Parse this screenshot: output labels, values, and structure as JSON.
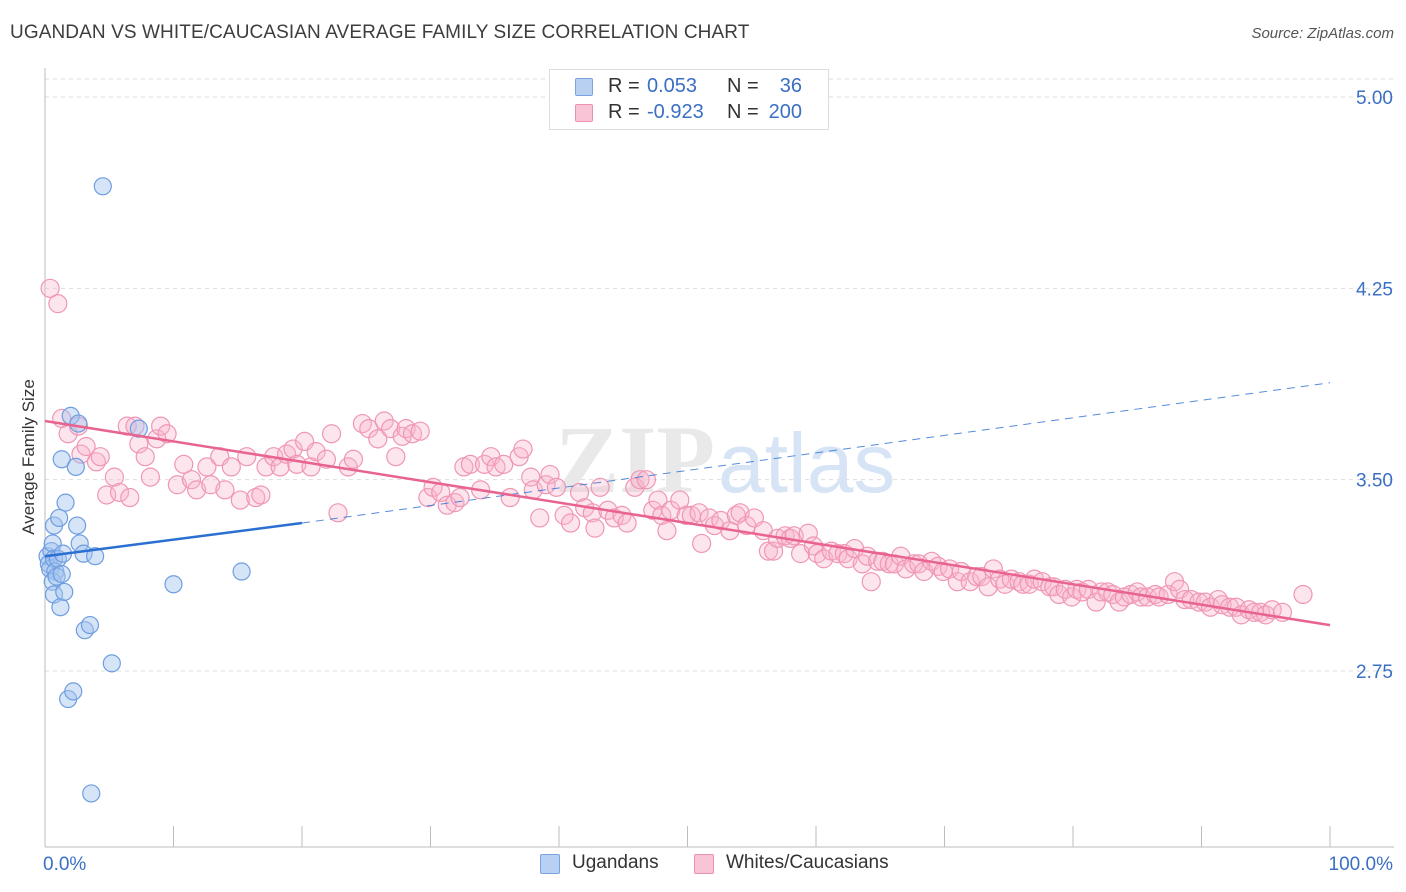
{
  "header": {
    "title": "UGANDAN VS WHITE/CAUCASIAN AVERAGE FAMILY SIZE CORRELATION CHART",
    "source": "Source: ZipAtlas.com"
  },
  "watermark": {
    "zip": "ZIP",
    "atlas": "atlas"
  },
  "legend": {
    "rows": [
      {
        "r_label": "R =",
        "r_value": "0.053",
        "n_label": "N =",
        "n_value": "36",
        "swatch_fill": "#b8d0f2",
        "swatch_border": "#7aa3e0"
      },
      {
        "r_label": "R =",
        "r_value": "-0.923",
        "n_label": "N =",
        "n_value": "200",
        "swatch_fill": "#f9c4d6",
        "swatch_border": "#ec8fb0"
      }
    ]
  },
  "bottom_legend": {
    "items": [
      {
        "label": "Ugandans",
        "swatch_fill": "#b8d0f2",
        "swatch_border": "#7aa3e0"
      },
      {
        "label": "Whites/Caucasians",
        "swatch_fill": "#f9c4d6",
        "swatch_border": "#ec8fb0"
      }
    ]
  },
  "colors": {
    "blue_fill": "rgba(164,196,240,0.45)",
    "blue_stroke": "#6e9ee0",
    "blue_line": "#2a6fd1",
    "pink_fill": "rgba(248,180,204,0.35)",
    "pink_stroke": "#ef96b6",
    "pink_line": "#e8648f",
    "axis_label": "#3a6fc4",
    "grid": "#dddddd"
  },
  "chart_data": {
    "type": "scatter",
    "title": "UGANDAN VS WHITE/CAUCASIAN AVERAGE FAMILY SIZE CORRELATION CHART",
    "xlabel": "",
    "ylabel": "Average Family Size",
    "xlim": [
      0,
      100
    ],
    "ylim": [
      2.25,
      5.1
    ],
    "x_tick_labels": [
      "0.0%",
      "100.0%"
    ],
    "y_ticks": [
      2.75,
      3.5,
      4.25,
      5.0
    ],
    "y_tick_labels": [
      "2.75",
      "3.50",
      "4.25",
      "5.00"
    ],
    "grid": "horizontal dashed",
    "series": [
      {
        "name": "Ugandans",
        "R": 0.053,
        "N": 36,
        "trend": {
          "solid": [
            [
              0,
              3.2
            ],
            [
              20,
              3.33
            ]
          ],
          "dashed": [
            [
              20,
              3.33
            ],
            [
              100,
              3.88
            ]
          ]
        },
        "points": [
          [
            0.2,
            3.2
          ],
          [
            0.3,
            3.17
          ],
          [
            0.4,
            3.15
          ],
          [
            0.5,
            3.22
          ],
          [
            0.6,
            3.25
          ],
          [
            0.7,
            3.19
          ],
          [
            0.8,
            3.14
          ],
          [
            0.6,
            3.1
          ],
          [
            0.7,
            3.05
          ],
          [
            0.7,
            3.32
          ],
          [
            0.9,
            3.12
          ],
          [
            1.0,
            3.19
          ],
          [
            1.1,
            3.35
          ],
          [
            1.2,
            3.0
          ],
          [
            1.3,
            3.13
          ],
          [
            1.3,
            3.58
          ],
          [
            1.4,
            3.21
          ],
          [
            1.5,
            3.06
          ],
          [
            1.6,
            3.41
          ],
          [
            1.8,
            2.64
          ],
          [
            2.0,
            3.75
          ],
          [
            2.2,
            2.67
          ],
          [
            2.4,
            3.55
          ],
          [
            2.5,
            3.32
          ],
          [
            2.6,
            3.72
          ],
          [
            2.7,
            3.25
          ],
          [
            3.0,
            3.21
          ],
          [
            3.1,
            2.91
          ],
          [
            3.5,
            2.93
          ],
          [
            3.6,
            2.27
          ],
          [
            3.9,
            3.2
          ],
          [
            4.5,
            4.65
          ],
          [
            5.2,
            2.78
          ],
          [
            7.3,
            3.7
          ],
          [
            10.0,
            3.09
          ],
          [
            15.3,
            3.14
          ]
        ]
      },
      {
        "name": "Whites/Caucasians",
        "R": -0.923,
        "N": 200,
        "trend": {
          "solid": [
            [
              0,
              3.73
            ],
            [
              100,
              2.93
            ]
          ]
        },
        "points": [
          [
            0.4,
            4.25
          ],
          [
            1.0,
            4.19
          ],
          [
            1.3,
            3.74
          ],
          [
            1.8,
            3.68
          ],
          [
            2.6,
            3.71
          ],
          [
            2.8,
            3.6
          ],
          [
            3.2,
            3.63
          ],
          [
            4.0,
            3.57
          ],
          [
            4.3,
            3.59
          ],
          [
            4.8,
            3.44
          ],
          [
            5.4,
            3.51
          ],
          [
            5.8,
            3.45
          ],
          [
            6.4,
            3.71
          ],
          [
            6.6,
            3.43
          ],
          [
            7.0,
            3.71
          ],
          [
            7.3,
            3.64
          ],
          [
            7.8,
            3.59
          ],
          [
            8.2,
            3.51
          ],
          [
            8.7,
            3.66
          ],
          [
            9.0,
            3.71
          ],
          [
            9.5,
            3.68
          ],
          [
            10.3,
            3.48
          ],
          [
            10.8,
            3.56
          ],
          [
            11.4,
            3.5
          ],
          [
            11.8,
            3.46
          ],
          [
            12.6,
            3.55
          ],
          [
            12.9,
            3.48
          ],
          [
            13.6,
            3.59
          ],
          [
            14.0,
            3.46
          ],
          [
            14.5,
            3.55
          ],
          [
            15.2,
            3.42
          ],
          [
            15.7,
            3.59
          ],
          [
            16.4,
            3.43
          ],
          [
            16.8,
            3.44
          ],
          [
            17.2,
            3.55
          ],
          [
            17.8,
            3.59
          ],
          [
            18.3,
            3.55
          ],
          [
            18.8,
            3.6
          ],
          [
            19.3,
            3.62
          ],
          [
            19.6,
            3.56
          ],
          [
            20.2,
            3.65
          ],
          [
            20.7,
            3.55
          ],
          [
            21.1,
            3.61
          ],
          [
            21.9,
            3.58
          ],
          [
            22.3,
            3.68
          ],
          [
            22.8,
            3.37
          ],
          [
            23.6,
            3.55
          ],
          [
            24.0,
            3.58
          ],
          [
            24.7,
            3.72
          ],
          [
            25.2,
            3.7
          ],
          [
            25.9,
            3.66
          ],
          [
            26.4,
            3.73
          ],
          [
            26.9,
            3.7
          ],
          [
            27.3,
            3.59
          ],
          [
            27.8,
            3.67
          ],
          [
            28.1,
            3.7
          ],
          [
            28.6,
            3.68
          ],
          [
            29.2,
            3.69
          ],
          [
            29.8,
            3.43
          ],
          [
            30.2,
            3.47
          ],
          [
            30.8,
            3.45
          ],
          [
            31.3,
            3.4
          ],
          [
            31.9,
            3.41
          ],
          [
            32.3,
            3.43
          ],
          [
            32.6,
            3.55
          ],
          [
            33.1,
            3.56
          ],
          [
            33.9,
            3.46
          ],
          [
            34.2,
            3.56
          ],
          [
            34.7,
            3.59
          ],
          [
            35.1,
            3.55
          ],
          [
            35.7,
            3.56
          ],
          [
            36.2,
            3.43
          ],
          [
            36.9,
            3.59
          ],
          [
            37.2,
            3.62
          ],
          [
            37.8,
            3.51
          ],
          [
            38.0,
            3.46
          ],
          [
            38.5,
            3.35
          ],
          [
            39.0,
            3.48
          ],
          [
            39.3,
            3.52
          ],
          [
            39.8,
            3.47
          ],
          [
            40.4,
            3.36
          ],
          [
            40.9,
            3.33
          ],
          [
            41.6,
            3.45
          ],
          [
            42.0,
            3.39
          ],
          [
            42.6,
            3.37
          ],
          [
            42.8,
            3.31
          ],
          [
            43.2,
            3.47
          ],
          [
            43.8,
            3.38
          ],
          [
            44.3,
            3.35
          ],
          [
            44.9,
            3.36
          ],
          [
            45.3,
            3.33
          ],
          [
            45.9,
            3.47
          ],
          [
            46.3,
            3.5
          ],
          [
            46.8,
            3.5
          ],
          [
            47.3,
            3.38
          ],
          [
            47.7,
            3.42
          ],
          [
            48.0,
            3.36
          ],
          [
            48.4,
            3.3
          ],
          [
            48.7,
            3.38
          ],
          [
            49.4,
            3.42
          ],
          [
            49.9,
            3.36
          ],
          [
            50.3,
            3.36
          ],
          [
            50.9,
            3.37
          ],
          [
            51.1,
            3.25
          ],
          [
            51.7,
            3.35
          ],
          [
            52.1,
            3.32
          ],
          [
            52.6,
            3.34
          ],
          [
            53.3,
            3.3
          ],
          [
            53.8,
            3.36
          ],
          [
            54.1,
            3.37
          ],
          [
            54.6,
            3.32
          ],
          [
            55.2,
            3.35
          ],
          [
            55.9,
            3.3
          ],
          [
            56.3,
            3.22
          ],
          [
            56.7,
            3.22
          ],
          [
            57.0,
            3.27
          ],
          [
            57.6,
            3.28
          ],
          [
            58.0,
            3.27
          ],
          [
            58.3,
            3.28
          ],
          [
            58.8,
            3.21
          ],
          [
            59.4,
            3.29
          ],
          [
            59.8,
            3.24
          ],
          [
            60.1,
            3.21
          ],
          [
            60.6,
            3.19
          ],
          [
            61.2,
            3.22
          ],
          [
            61.7,
            3.21
          ],
          [
            62.2,
            3.21
          ],
          [
            62.5,
            3.19
          ],
          [
            63.0,
            3.23
          ],
          [
            63.6,
            3.17
          ],
          [
            64.0,
            3.2
          ],
          [
            64.3,
            3.1
          ],
          [
            64.8,
            3.18
          ],
          [
            65.2,
            3.18
          ],
          [
            65.7,
            3.17
          ],
          [
            66.1,
            3.17
          ],
          [
            66.6,
            3.2
          ],
          [
            67.0,
            3.15
          ],
          [
            67.6,
            3.17
          ],
          [
            68.0,
            3.17
          ],
          [
            68.4,
            3.14
          ],
          [
            69.0,
            3.18
          ],
          [
            69.5,
            3.16
          ],
          [
            69.9,
            3.14
          ],
          [
            70.4,
            3.15
          ],
          [
            71.0,
            3.1
          ],
          [
            71.3,
            3.14
          ],
          [
            72.0,
            3.1
          ],
          [
            72.5,
            3.12
          ],
          [
            72.9,
            3.12
          ],
          [
            73.4,
            3.08
          ],
          [
            73.8,
            3.15
          ],
          [
            74.3,
            3.11
          ],
          [
            74.7,
            3.09
          ],
          [
            75.2,
            3.11
          ],
          [
            75.8,
            3.1
          ],
          [
            76.1,
            3.09
          ],
          [
            76.6,
            3.09
          ],
          [
            77.0,
            3.11
          ],
          [
            77.6,
            3.1
          ],
          [
            78.2,
            3.08
          ],
          [
            78.5,
            3.08
          ],
          [
            78.9,
            3.05
          ],
          [
            79.4,
            3.07
          ],
          [
            79.9,
            3.04
          ],
          [
            80.3,
            3.07
          ],
          [
            80.7,
            3.06
          ],
          [
            81.2,
            3.07
          ],
          [
            81.8,
            3.02
          ],
          [
            82.2,
            3.06
          ],
          [
            82.7,
            3.06
          ],
          [
            83.1,
            3.05
          ],
          [
            83.6,
            3.02
          ],
          [
            84.0,
            3.04
          ],
          [
            84.5,
            3.05
          ],
          [
            85.0,
            3.06
          ],
          [
            85.3,
            3.04
          ],
          [
            85.8,
            3.04
          ],
          [
            86.4,
            3.05
          ],
          [
            86.7,
            3.04
          ],
          [
            87.4,
            3.05
          ],
          [
            87.9,
            3.1
          ],
          [
            88.3,
            3.07
          ],
          [
            88.7,
            3.03
          ],
          [
            89.2,
            3.03
          ],
          [
            89.8,
            3.02
          ],
          [
            90.3,
            3.02
          ],
          [
            90.7,
            3.0
          ],
          [
            91.3,
            3.03
          ],
          [
            91.6,
            3.01
          ],
          [
            92.2,
            3.0
          ],
          [
            92.7,
            3.0
          ],
          [
            93.1,
            2.97
          ],
          [
            93.7,
            2.99
          ],
          [
            94.1,
            2.98
          ],
          [
            94.6,
            2.98
          ],
          [
            95.0,
            2.97
          ],
          [
            95.5,
            2.99
          ],
          [
            96.3,
            2.98
          ],
          [
            97.9,
            3.05
          ]
        ]
      }
    ]
  }
}
